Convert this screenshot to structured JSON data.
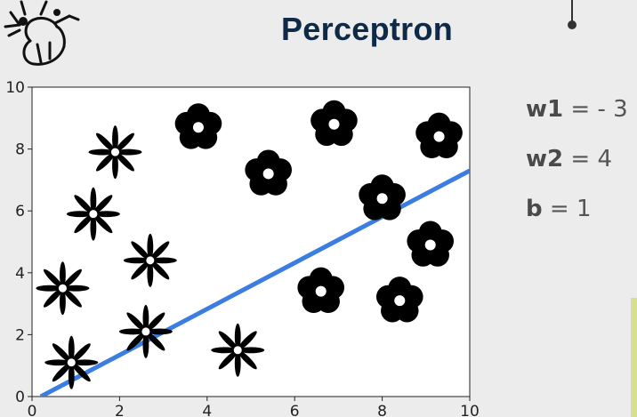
{
  "header": {
    "title": "Perceptron",
    "logo_icon": "neuron-icon",
    "pin_icon": "pin-icon"
  },
  "params": [
    {
      "name": "w1",
      "eq": "=",
      "value": "- 3"
    },
    {
      "name": "w2",
      "eq": "=",
      "value": "4"
    },
    {
      "name": "b",
      "eq": "=",
      "value": "1"
    }
  ],
  "chart_data": {
    "type": "scatter",
    "xlim": [
      0,
      10
    ],
    "ylim": [
      0,
      10
    ],
    "x_ticks": [
      "0",
      "2",
      "4",
      "6",
      "8",
      "10"
    ],
    "y_ticks": [
      "0",
      "2",
      "4",
      "6",
      "8",
      "10"
    ],
    "grid": false,
    "series": [
      {
        "marker": "star-flower",
        "color": "#000000",
        "points": [
          {
            "x": 0.9,
            "y": 1.1
          },
          {
            "x": 0.7,
            "y": 3.5
          },
          {
            "x": 1.4,
            "y": 5.9
          },
          {
            "x": 1.9,
            "y": 7.9
          },
          {
            "x": 2.7,
            "y": 4.4
          },
          {
            "x": 2.6,
            "y": 2.1
          },
          {
            "x": 4.7,
            "y": 1.5
          }
        ]
      },
      {
        "marker": "round-flower",
        "color": "#000000",
        "points": [
          {
            "x": 3.8,
            "y": 8.7
          },
          {
            "x": 5.4,
            "y": 7.2
          },
          {
            "x": 6.9,
            "y": 8.8
          },
          {
            "x": 9.3,
            "y": 8.4
          },
          {
            "x": 8.0,
            "y": 6.4
          },
          {
            "x": 9.1,
            "y": 4.9
          },
          {
            "x": 6.6,
            "y": 3.4
          },
          {
            "x": 8.4,
            "y": 3.1
          }
        ]
      }
    ],
    "decision_boundary": {
      "color": "#3b7de0",
      "points": [
        {
          "x": 0.2,
          "y": 0.0
        },
        {
          "x": 10.0,
          "y": 7.3
        }
      ]
    }
  }
}
